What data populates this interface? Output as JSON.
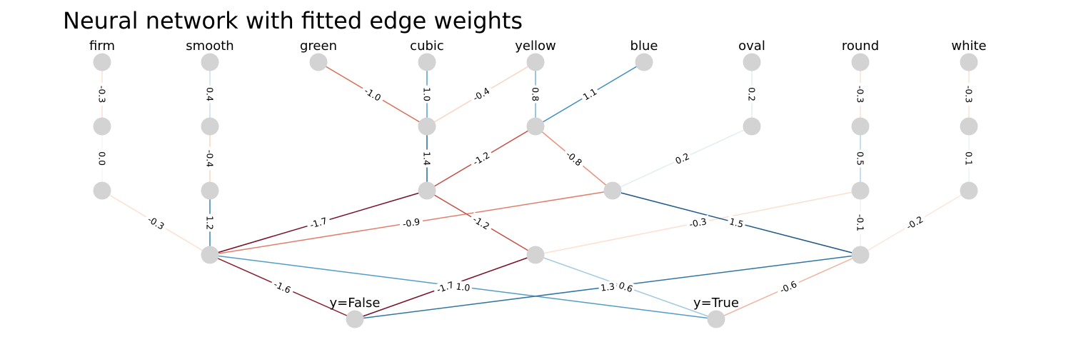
{
  "title": "Neural network with fitted edge weights",
  "colormap": {
    "negative_strong": "#67001f",
    "negative_mid": "#d6604d",
    "negative_weak": "#fddbc7",
    "neutral": "#f7f7f7",
    "positive_weak": "#d1e5f0",
    "positive_mid": "#4393c3",
    "positive_strong": "#053061",
    "max_abs": 1.8
  },
  "node_color": "#d3d3d3",
  "nodes": [
    {
      "id": "firm",
      "label": "firm"
    },
    {
      "id": "smooth",
      "label": "smooth"
    },
    {
      "id": "green",
      "label": "green"
    },
    {
      "id": "cubic",
      "label": "cubic"
    },
    {
      "id": "yellow",
      "label": "yellow"
    },
    {
      "id": "blue",
      "label": "blue"
    },
    {
      "id": "oval",
      "label": "oval"
    },
    {
      "id": "round",
      "label": "round"
    },
    {
      "id": "white",
      "label": "white"
    },
    {
      "id": "h1_firm",
      "label": ""
    },
    {
      "id": "h1_smooth",
      "label": ""
    },
    {
      "id": "h1_cubic",
      "label": ""
    },
    {
      "id": "h1_yellow",
      "label": ""
    },
    {
      "id": "h1_oval",
      "label": ""
    },
    {
      "id": "h1_round",
      "label": ""
    },
    {
      "id": "h1_white",
      "label": ""
    },
    {
      "id": "h2_firm",
      "label": ""
    },
    {
      "id": "h2_smooth",
      "label": ""
    },
    {
      "id": "h2_cubic",
      "label": ""
    },
    {
      "id": "h2_mid",
      "label": ""
    },
    {
      "id": "h2_round",
      "label": ""
    },
    {
      "id": "h2_white",
      "label": ""
    },
    {
      "id": "h3_left",
      "label": ""
    },
    {
      "id": "h3_mid",
      "label": ""
    },
    {
      "id": "h3_right",
      "label": ""
    },
    {
      "id": "y_false",
      "label": "y=False"
    },
    {
      "id": "y_true",
      "label": "y=True"
    }
  ],
  "edges": [
    {
      "from": "firm",
      "to": "h1_firm",
      "weight": "-0.3"
    },
    {
      "from": "smooth",
      "to": "h1_smooth",
      "weight": "0.4"
    },
    {
      "from": "green",
      "to": "h1_cubic",
      "weight": "-1.0"
    },
    {
      "from": "cubic",
      "to": "h1_cubic",
      "weight": "1.0"
    },
    {
      "from": "yellow",
      "to": "h1_cubic",
      "weight": "-0.4"
    },
    {
      "from": "yellow",
      "to": "h1_yellow",
      "weight": "0.8"
    },
    {
      "from": "blue",
      "to": "h1_yellow",
      "weight": "1.1"
    },
    {
      "from": "oval",
      "to": "h1_oval",
      "weight": "0.2"
    },
    {
      "from": "round",
      "to": "h1_round",
      "weight": "-0.3"
    },
    {
      "from": "white",
      "to": "h1_white",
      "weight": "-0.3"
    },
    {
      "from": "h1_firm",
      "to": "h2_firm",
      "weight": "0.0"
    },
    {
      "from": "h1_smooth",
      "to": "h2_smooth",
      "weight": "-0.4"
    },
    {
      "from": "h1_cubic",
      "to": "h2_cubic",
      "weight": "1.4"
    },
    {
      "from": "h1_yellow",
      "to": "h2_cubic",
      "weight": "-1.2"
    },
    {
      "from": "h1_yellow",
      "to": "h2_mid",
      "weight": "-0.8"
    },
    {
      "from": "h1_oval",
      "to": "h2_mid",
      "weight": "0.2"
    },
    {
      "from": "h1_round",
      "to": "h2_round",
      "weight": "0.5"
    },
    {
      "from": "h1_white",
      "to": "h2_white",
      "weight": "0.1"
    },
    {
      "from": "h2_firm",
      "to": "h3_left",
      "weight": "-0.3"
    },
    {
      "from": "h2_smooth",
      "to": "h3_left",
      "weight": "1.2"
    },
    {
      "from": "h2_cubic",
      "to": "h3_left",
      "weight": "-1.7"
    },
    {
      "from": "h2_mid",
      "to": "h3_left",
      "weight": "-0.9"
    },
    {
      "from": "h2_cubic",
      "to": "h3_mid",
      "weight": "-1.2"
    },
    {
      "from": "h2_round",
      "to": "h3_mid",
      "weight": "-0.3"
    },
    {
      "from": "h2_mid",
      "to": "h3_right",
      "weight": "1.5"
    },
    {
      "from": "h2_round",
      "to": "h3_right",
      "weight": "-0.1"
    },
    {
      "from": "h2_white",
      "to": "h3_right",
      "weight": "-0.2"
    },
    {
      "from": "h3_left",
      "to": "y_false",
      "weight": "-1.6"
    },
    {
      "from": "h3_left",
      "to": "y_true",
      "weight": "1.0"
    },
    {
      "from": "h3_mid",
      "to": "y_false",
      "weight": "-1.7"
    },
    {
      "from": "h3_mid",
      "to": "y_true",
      "weight": "0.6"
    },
    {
      "from": "h3_right",
      "to": "y_false",
      "weight": "1.3"
    },
    {
      "from": "h3_right",
      "to": "y_true",
      "weight": "-0.6"
    }
  ]
}
